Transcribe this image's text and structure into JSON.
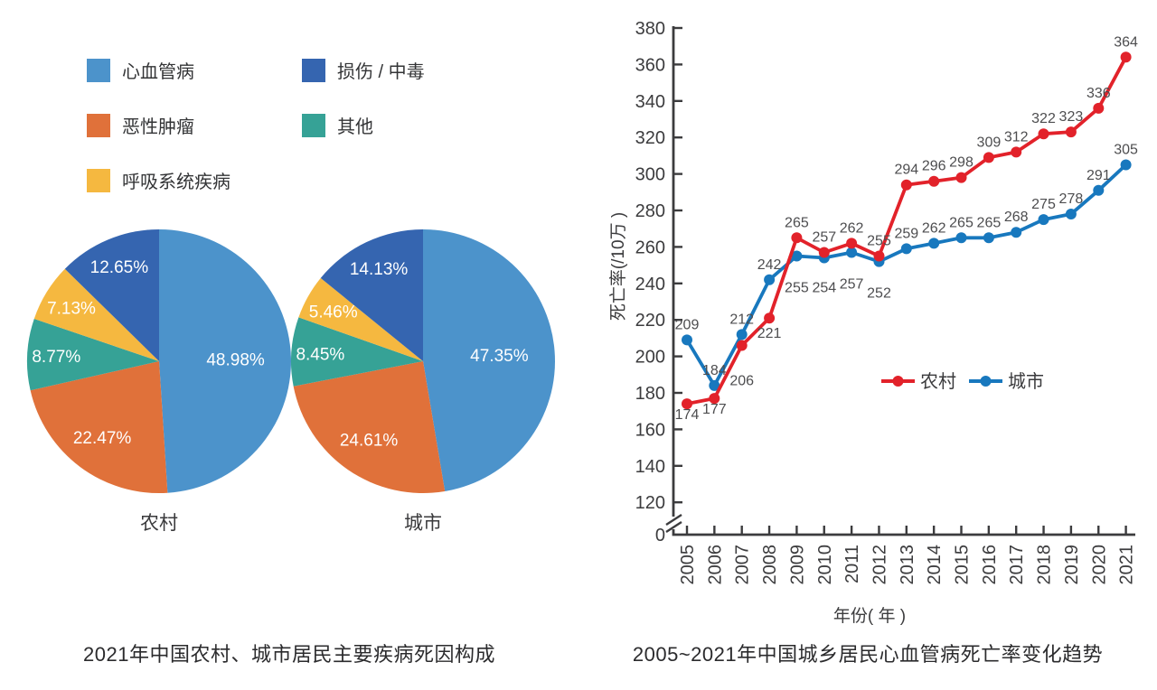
{
  "colors": {
    "axis": "#3c3c3e",
    "tick_label": "#3c3c3e",
    "data_label": "#4d4d4f",
    "caption": "#2b2b2d",
    "legend_text": "#333436",
    "pie_label_text": "#ffffff",
    "background": "#ffffff"
  },
  "chart_data": [
    {
      "type": "pie",
      "title": "2021年中国农村、城市居民主要疾病死因构成",
      "legend": [
        {
          "label": "心血管病",
          "color": "#4c93cb"
        },
        {
          "label": "恶性肿瘤",
          "color": "#e0713a"
        },
        {
          "label": "呼吸系统疾病",
          "color": "#f5b840"
        },
        {
          "label": "损伤 / 中毒",
          "color": "#3565b0"
        },
        {
          "label": "其他",
          "color": "#36a296"
        }
      ],
      "pies": [
        {
          "name": "农村",
          "slices": [
            {
              "label": "心血管病",
              "value": 48.98,
              "color": "#4c93cb"
            },
            {
              "label": "恶性肿瘤",
              "value": 22.47,
              "color": "#e0713a"
            },
            {
              "label": "其他",
              "value": 8.77,
              "color": "#36a296"
            },
            {
              "label": "呼吸系统疾病",
              "value": 7.13,
              "color": "#f5b840"
            },
            {
              "label": "损伤 / 中毒",
              "value": 12.65,
              "color": "#3565b0"
            }
          ]
        },
        {
          "name": "城市",
          "slices": [
            {
              "label": "心血管病",
              "value": 47.35,
              "color": "#4c93cb"
            },
            {
              "label": "恶性肿瘤",
              "value": 24.61,
              "color": "#e0713a"
            },
            {
              "label": "其他",
              "value": 8.45,
              "color": "#36a296"
            },
            {
              "label": "呼吸系统疾病",
              "value": 5.46,
              "color": "#f5b840"
            },
            {
              "label": "损伤 / 中毒",
              "value": 14.13,
              "color": "#3565b0"
            }
          ]
        }
      ]
    },
    {
      "type": "line",
      "title": "2005~2021年中国城乡居民心血管病死亡率变化趋势",
      "xlabel": "年份( 年 )",
      "ylabel": "死亡率(/10万 )",
      "x": [
        "2005",
        "2006",
        "2007",
        "2008",
        "2009",
        "2010",
        "2011",
        "2012",
        "2013",
        "2014",
        "2015",
        "2016",
        "2017",
        "2018",
        "2019",
        "2020",
        "2021"
      ],
      "y_ticks": [
        380,
        360,
        340,
        320,
        300,
        280,
        260,
        240,
        220,
        200,
        180,
        160,
        140,
        120
      ],
      "y_origin_label": "0",
      "y_axis_break": true,
      "ylim": [
        120,
        380
      ],
      "grid": false,
      "legend_position": "inside-right-middle",
      "series": [
        {
          "name": "农村",
          "color": "#e2222a",
          "values": [
            174,
            177,
            206,
            221,
            265,
            257,
            262,
            255,
            294,
            296,
            298,
            309,
            312,
            322,
            323,
            336,
            364
          ],
          "label_dy": [
            17,
            17,
            44,
            22,
            -12,
            -12,
            -12,
            -12,
            -12,
            -12,
            -12,
            -12,
            -12,
            -12,
            -12,
            -12,
            -12
          ]
        },
        {
          "name": "城市",
          "color": "#1878be",
          "values": [
            209,
            184,
            212,
            242,
            255,
            254,
            257,
            252,
            259,
            262,
            265,
            265,
            268,
            275,
            278,
            291,
            305
          ],
          "label_dy": [
            -12,
            -12,
            -12,
            -12,
            40,
            38,
            40,
            40,
            -12,
            -12,
            -12,
            -12,
            -12,
            -12,
            -12,
            -12,
            -12
          ]
        }
      ]
    }
  ]
}
